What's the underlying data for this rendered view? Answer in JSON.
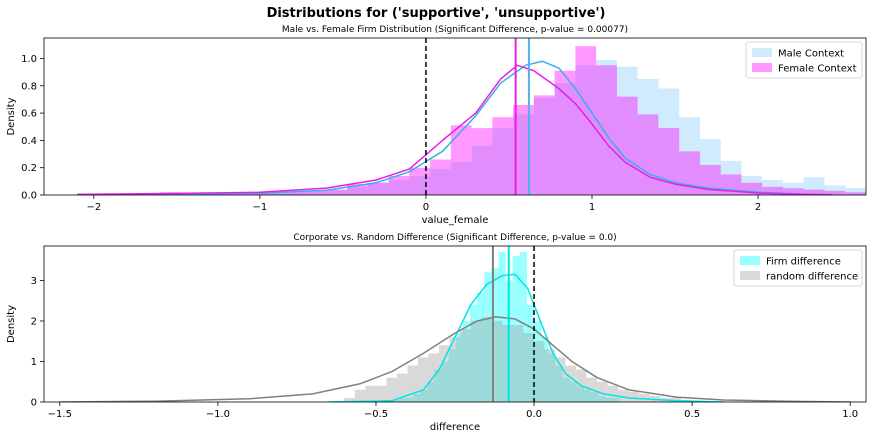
{
  "figure": {
    "title": "Distributions for ('supportive', 'unsupportive')"
  },
  "chart_data": [
    {
      "type": "histogram",
      "title": "Male vs. Female Firm Distribution (Significant Difference, p-value = 0.00077)",
      "xlabel": "value_female",
      "ylabel": "Density",
      "xlim": [
        -2.3,
        2.65
      ],
      "ylim": [
        0,
        1.15
      ],
      "xticks": [
        -2,
        -1,
        0,
        1,
        2
      ],
      "yticks": [
        0.0,
        0.2,
        0.4,
        0.6,
        0.8,
        1.0
      ],
      "legend": "top-right",
      "vlines": [
        {
          "x": 0,
          "color": "#000000",
          "style": "dashed"
        },
        {
          "x": 0.62,
          "color": "#4fb3e8",
          "style": "solid"
        },
        {
          "x": 0.54,
          "color": "#e81ee8",
          "style": "solid"
        }
      ],
      "series": [
        {
          "name": "Male Context",
          "color": "#87cefa",
          "line_color": "#3aaee8",
          "bin_start": -2.1,
          "bin_width": 0.125,
          "values": [
            0.005,
            0.005,
            0.005,
            0.01,
            0.01,
            0.01,
            0.01,
            0.015,
            0.015,
            0.02,
            0.02,
            0.03,
            0.035,
            0.06,
            0.09,
            0.11,
            0.14,
            0.19,
            0.24,
            0.36,
            0.49,
            0.59,
            0.71,
            0.82,
            0.95,
            0.99,
            0.94,
            0.85,
            0.78,
            0.57,
            0.41,
            0.25,
            0.14,
            0.11,
            0.09,
            0.13,
            0.07,
            0.05,
            0.03,
            0.07,
            0.01,
            0.005
          ],
          "kde": [
            [
              -2.1,
              0.003
            ],
            [
              -1.5,
              0.007
            ],
            [
              -1.0,
              0.013
            ],
            [
              -0.6,
              0.035
            ],
            [
              -0.3,
              0.09
            ],
            [
              -0.1,
              0.17
            ],
            [
              0.1,
              0.32
            ],
            [
              0.3,
              0.58
            ],
            [
              0.45,
              0.82
            ],
            [
              0.6,
              0.95
            ],
            [
              0.7,
              0.98
            ],
            [
              0.8,
              0.93
            ],
            [
              0.9,
              0.78
            ],
            [
              1.0,
              0.6
            ],
            [
              1.1,
              0.42
            ],
            [
              1.2,
              0.27
            ],
            [
              1.35,
              0.15
            ],
            [
              1.5,
              0.09
            ],
            [
              1.7,
              0.05
            ],
            [
              2.0,
              0.02
            ],
            [
              2.3,
              0.005
            ],
            [
              2.45,
              0.002
            ]
          ]
        },
        {
          "name": "Female Context",
          "color": "#ff00ff",
          "line_color": "#e81ee8",
          "bin_start": -2.1,
          "bin_width": 0.125,
          "values": [
            0.005,
            0.005,
            0.005,
            0.01,
            0.02,
            0.015,
            0.015,
            0.015,
            0.02,
            0.02,
            0.025,
            0.03,
            0.04,
            0.08,
            0.09,
            0.14,
            0.2,
            0.26,
            0.51,
            0.49,
            0.57,
            0.66,
            0.73,
            0.91,
            1.09,
            0.95,
            0.72,
            0.59,
            0.49,
            0.32,
            0.22,
            0.15,
            0.09,
            0.06,
            0.05,
            0.04,
            0.03,
            0.02,
            0.02,
            0.015,
            0.005,
            0.002
          ],
          "kde": [
            [
              -2.1,
              0.005
            ],
            [
              -1.5,
              0.012
            ],
            [
              -1.0,
              0.02
            ],
            [
              -0.6,
              0.05
            ],
            [
              -0.3,
              0.11
            ],
            [
              -0.1,
              0.19
            ],
            [
              0.1,
              0.4
            ],
            [
              0.3,
              0.6
            ],
            [
              0.45,
              0.85
            ],
            [
              0.55,
              0.95
            ],
            [
              0.65,
              0.91
            ],
            [
              0.8,
              0.78
            ],
            [
              0.9,
              0.67
            ],
            [
              1.0,
              0.52
            ],
            [
              1.1,
              0.36
            ],
            [
              1.2,
              0.24
            ],
            [
              1.35,
              0.13
            ],
            [
              1.5,
              0.08
            ],
            [
              1.7,
              0.04
            ],
            [
              2.0,
              0.015
            ],
            [
              2.3,
              0.004
            ],
            [
              2.45,
              0.002
            ]
          ]
        }
      ]
    },
    {
      "type": "histogram",
      "title": "Corporate vs. Random Difference (Significant Difference, p-value = 0.0)",
      "xlabel": "difference",
      "ylabel": "Density",
      "xlim": [
        -1.55,
        1.05
      ],
      "ylim": [
        0,
        3.85
      ],
      "xticks": [
        -1.5,
        -1.0,
        -0.5,
        0.0,
        0.5,
        1.0
      ],
      "xtick_labels": [
        "−1.5",
        "−1.0",
        "−0.5",
        "0.0",
        "0.5",
        "1.0"
      ],
      "yticks": [
        0,
        1,
        2,
        3
      ],
      "legend": "top-right",
      "vlines": [
        {
          "x": 0,
          "color": "#000000",
          "style": "dashed"
        },
        {
          "x": -0.13,
          "color": "#808080",
          "style": "solid"
        },
        {
          "x": -0.08,
          "color": "#00e5e5",
          "style": "solid"
        }
      ],
      "series": [
        {
          "name": "Firm difference",
          "color": "#00ffff",
          "line_color": "#00e5e5",
          "bin_start": -0.45,
          "bin_width": 0.0225,
          "values": [
            0.05,
            0.1,
            0.1,
            0.2,
            0.3,
            0.5,
            0.8,
            1.0,
            1.3,
            1.7,
            2.0,
            2.4,
            2.7,
            3.2,
            3.3,
            3.7,
            3.0,
            3.6,
            3.7,
            2.4,
            2.0,
            1.6,
            1.2,
            0.9,
            0.6,
            0.5,
            0.4,
            0.3,
            0.25,
            0.15,
            0.1,
            0.1
          ],
          "kde": [
            [
              -0.65,
              0.0
            ],
            [
              -0.45,
              0.03
            ],
            [
              -0.35,
              0.3
            ],
            [
              -0.3,
              0.8
            ],
            [
              -0.25,
              1.6
            ],
            [
              -0.2,
              2.4
            ],
            [
              -0.15,
              2.9
            ],
            [
              -0.1,
              3.12
            ],
            [
              -0.06,
              3.15
            ],
            [
              -0.02,
              2.8
            ],
            [
              0.02,
              2.0
            ],
            [
              0.06,
              1.2
            ],
            [
              0.1,
              0.7
            ],
            [
              0.15,
              0.4
            ],
            [
              0.22,
              0.2
            ],
            [
              0.3,
              0.1
            ],
            [
              0.45,
              0.03
            ],
            [
              0.6,
              0.0
            ]
          ]
        },
        {
          "name": "random difference",
          "color": "#a0a0a0",
          "line_color": "#808080",
          "bin_start": -0.6,
          "bin_width": 0.0333,
          "values": [
            0.1,
            0.3,
            0.4,
            0.4,
            0.6,
            0.7,
            0.9,
            1.1,
            1.2,
            1.4,
            1.6,
            1.8,
            2.0,
            2.1,
            2.0,
            1.9,
            1.9,
            1.7,
            1.5,
            1.3,
            1.1,
            0.9,
            0.8,
            0.6,
            0.5,
            0.4,
            0.3,
            0.25,
            0.2,
            0.15,
            0.1,
            0.1,
            0.05
          ],
          "kde": [
            [
              -1.5,
              0.0
            ],
            [
              -1.2,
              0.02
            ],
            [
              -0.9,
              0.08
            ],
            [
              -0.7,
              0.2
            ],
            [
              -0.55,
              0.45
            ],
            [
              -0.45,
              0.75
            ],
            [
              -0.35,
              1.2
            ],
            [
              -0.25,
              1.7
            ],
            [
              -0.18,
              2.0
            ],
            [
              -0.12,
              2.1
            ],
            [
              -0.06,
              2.05
            ],
            [
              0.0,
              1.8
            ],
            [
              0.06,
              1.4
            ],
            [
              0.12,
              1.0
            ],
            [
              0.2,
              0.6
            ],
            [
              0.3,
              0.3
            ],
            [
              0.45,
              0.12
            ],
            [
              0.6,
              0.05
            ],
            [
              0.8,
              0.02
            ],
            [
              1.0,
              0.0
            ]
          ]
        }
      ]
    }
  ]
}
